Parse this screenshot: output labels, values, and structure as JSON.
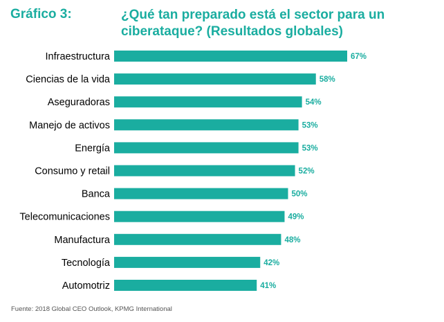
{
  "header": {
    "label": "Gráfico 3:",
    "title": "¿Qué tan preparado está el sector para un ciberataque? (Resultados globales)"
  },
  "colors": {
    "accent": "#1aada0",
    "text": "#000000"
  },
  "chart_data": {
    "type": "bar",
    "orientation": "horizontal",
    "title": "¿Qué tan preparado está el sector para un ciberataque? (Resultados globales)",
    "categories": [
      "Infraestructura",
      "Ciencias de la vida",
      "Aseguradoras",
      "Manejo de activos",
      "Energía",
      "Consumo y retail",
      "Banca",
      "Telecomunicaciones",
      "Manufactura",
      "Tecnología",
      "Automotriz"
    ],
    "values": [
      67,
      58,
      54,
      53,
      53,
      52,
      50,
      49,
      48,
      42,
      41
    ],
    "value_labels": [
      "67%",
      "58%",
      "54%",
      "53%",
      "53%",
      "52%",
      "50%",
      "49%",
      "48%",
      "42%",
      "41%"
    ],
    "unit": "%",
    "grid": false,
    "legend": "none"
  },
  "footer": {
    "source": "Fuente: 2018 Global CEO Outlook, KPMG International"
  }
}
